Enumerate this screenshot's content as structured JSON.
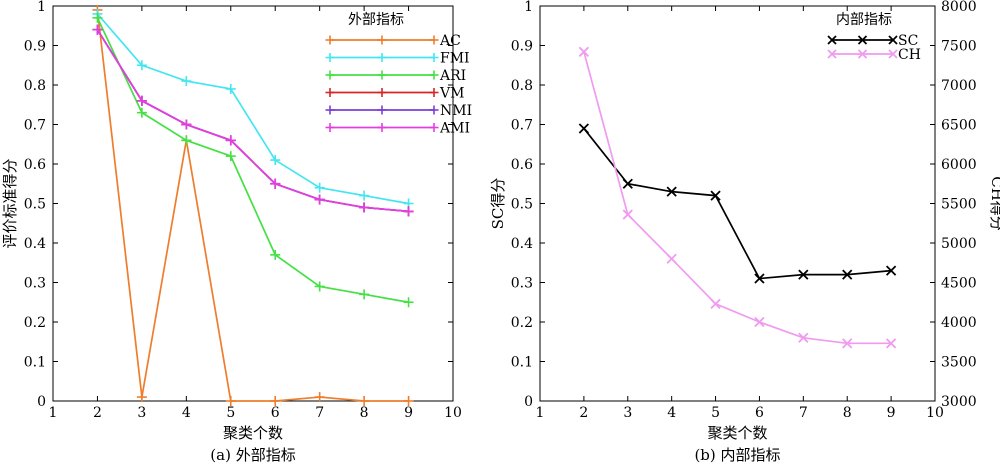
{
  "chart_data": [
    {
      "type": "line",
      "caption": "(a) 外部指标",
      "xlabel": "聚类个数",
      "ylabel": "评价标准得分",
      "xlim": [
        1,
        10
      ],
      "ylim": [
        0,
        1
      ],
      "xticks": [
        "1",
        "2",
        "3",
        "4",
        "5",
        "6",
        "7",
        "8",
        "9",
        "10"
      ],
      "yticks": [
        "0",
        "0.1",
        "0.2",
        "0.3",
        "0.4",
        "0.5",
        "0.6",
        "0.7",
        "0.8",
        "0.9",
        "1"
      ],
      "legend_title": "外部指标",
      "legend_position": "top-right",
      "x": [
        2,
        3,
        4,
        5,
        6,
        7,
        8,
        9
      ],
      "series": [
        {
          "name": "AC",
          "color": "#ee7d2c",
          "marker": "plus",
          "values": [
            0.99,
            0.01,
            0.66,
            0.0,
            0.0,
            0.01,
            0.0,
            0.0
          ]
        },
        {
          "name": "FMI",
          "color": "#43e6f0",
          "marker": "plus",
          "values": [
            0.98,
            0.85,
            0.81,
            0.79,
            0.61,
            0.54,
            0.52,
            0.5
          ]
        },
        {
          "name": "ARI",
          "color": "#44e044",
          "marker": "plus",
          "values": [
            0.97,
            0.73,
            0.66,
            0.62,
            0.37,
            0.29,
            0.27,
            0.25
          ]
        },
        {
          "name": "VM",
          "color": "#d62728",
          "marker": "plus",
          "values": [
            0.94,
            0.76,
            0.7,
            0.66,
            0.55,
            0.51,
            0.49,
            0.48
          ]
        },
        {
          "name": "NMI",
          "color": "#7b3fd4",
          "marker": "plus",
          "values": [
            0.94,
            0.76,
            0.7,
            0.66,
            0.55,
            0.51,
            0.49,
            0.48
          ]
        },
        {
          "name": "AMI",
          "color": "#e23fe0",
          "marker": "plus",
          "values": [
            0.94,
            0.76,
            0.7,
            0.66,
            0.55,
            0.51,
            0.49,
            0.48
          ]
        }
      ]
    },
    {
      "type": "line",
      "caption": "(b) 内部指标",
      "xlabel": "聚类个数",
      "ylabel": "SC得分",
      "y2label": "CH得分",
      "xlim": [
        1,
        10
      ],
      "ylim": [
        0,
        1
      ],
      "y2lim": [
        3000,
        8000
      ],
      "xticks": [
        "1",
        "2",
        "3",
        "4",
        "5",
        "6",
        "7",
        "8",
        "9",
        "10"
      ],
      "yticks": [
        "0",
        "0.1",
        "0.2",
        "0.3",
        "0.4",
        "0.5",
        "0.6",
        "0.7",
        "0.8",
        "0.9",
        "1"
      ],
      "y2ticks": [
        "3000",
        "3500",
        "4000",
        "4500",
        "5000",
        "5500",
        "6000",
        "6500",
        "7000",
        "7500",
        "8000"
      ],
      "legend_title": "内部指标",
      "legend_position": "top-right",
      "x": [
        2,
        3,
        4,
        5,
        6,
        7,
        8,
        9
      ],
      "series": [
        {
          "name": "SC",
          "color": "#000000",
          "marker": "x",
          "axis": "left",
          "values": [
            0.69,
            0.55,
            0.53,
            0.52,
            0.31,
            0.32,
            0.32,
            0.33
          ]
        },
        {
          "name": "CH",
          "color": "#f09af0",
          "marker": "x",
          "axis": "right",
          "values": [
            7420,
            5360,
            4800,
            4230,
            4000,
            3800,
            3730,
            3730
          ]
        }
      ]
    }
  ]
}
